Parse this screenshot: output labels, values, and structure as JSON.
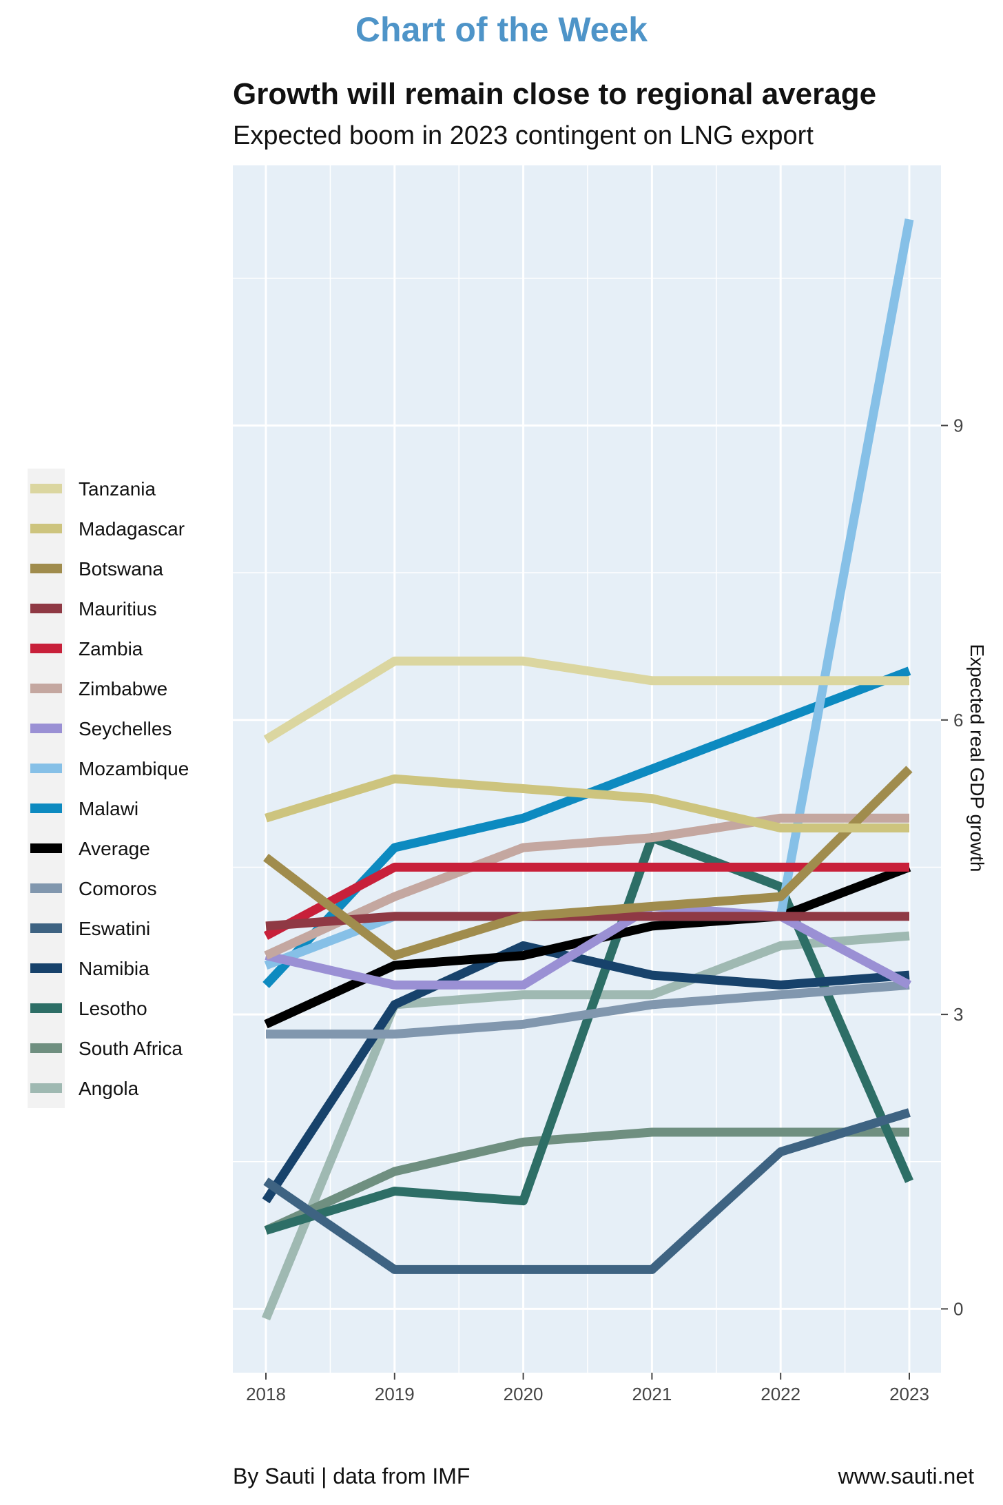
{
  "header": {
    "kicker": "Chart of the Week",
    "title": "Growth will remain close to regional average",
    "subtitle": "Expected boom in 2023 contingent on LNG export"
  },
  "footer": {
    "source": "By Sauti | data from IMF",
    "website": "www.sauti.net"
  },
  "chart_data": {
    "type": "line",
    "title": "Growth will remain close to regional average",
    "subtitle": "Expected boom in 2023 contingent on LNG export",
    "xlabel": "",
    "ylabel": "Expected real GDP growth",
    "y_axis_position": "right",
    "x": [
      2018,
      2019,
      2020,
      2021,
      2022,
      2023
    ],
    "x_ticks": [
      "2018",
      "2019",
      "2020",
      "2021",
      "2022",
      "2023"
    ],
    "y_ticks": [
      0,
      3,
      6,
      9
    ],
    "ylim": [
      -0.65,
      11.65
    ],
    "grid": true,
    "panel_background": "#e6eff7",
    "legend_position": "left",
    "series": [
      {
        "name": "Tanzania",
        "color": "#dbd6a0",
        "values": [
          5.8,
          6.6,
          6.6,
          6.4,
          6.4,
          6.4
        ]
      },
      {
        "name": "Madagascar",
        "color": "#cdc47e",
        "values": [
          5.0,
          5.4,
          5.3,
          5.2,
          4.9,
          4.9
        ]
      },
      {
        "name": "Botswana",
        "color": "#a08c4d",
        "values": [
          4.6,
          3.6,
          4.0,
          4.1,
          4.2,
          5.5
        ]
      },
      {
        "name": "Mauritius",
        "color": "#8f3944",
        "values": [
          3.9,
          4.0,
          4.0,
          4.0,
          4.0,
          4.0
        ]
      },
      {
        "name": "Zambia",
        "color": "#c8203a",
        "values": [
          3.8,
          4.5,
          4.5,
          4.5,
          4.5,
          4.5
        ]
      },
      {
        "name": "Zimbabwe",
        "color": "#c4a7a0",
        "values": [
          3.6,
          4.2,
          4.7,
          4.8,
          5.0,
          5.0
        ]
      },
      {
        "name": "Seychelles",
        "color": "#9a90d4",
        "values": [
          3.6,
          3.3,
          3.3,
          4.1,
          4.0,
          3.3
        ]
      },
      {
        "name": "Mozambique",
        "color": "#86c0e7",
        "values": [
          3.5,
          4.0,
          4.0,
          4.0,
          4.0,
          11.1
        ]
      },
      {
        "name": "Malawi",
        "color": "#0d8ac0",
        "values": [
          3.3,
          4.7,
          5.0,
          5.5,
          6.0,
          6.5
        ]
      },
      {
        "name": "Average",
        "color": "#000000",
        "values": [
          2.9,
          3.5,
          3.6,
          3.9,
          4.0,
          4.5
        ]
      },
      {
        "name": "Comoros",
        "color": "#8197ae",
        "values": [
          2.8,
          2.8,
          2.9,
          3.1,
          3.2,
          3.3
        ]
      },
      {
        "name": "Eswatini",
        "color": "#3e6382",
        "values": [
          1.3,
          0.4,
          0.4,
          0.4,
          1.6,
          2.0
        ]
      },
      {
        "name": "Namibia",
        "color": "#17426b",
        "values": [
          1.1,
          3.1,
          3.7,
          3.4,
          3.3,
          3.4
        ]
      },
      {
        "name": "Lesotho",
        "color": "#2d6e66",
        "values": [
          0.8,
          1.2,
          1.1,
          4.8,
          4.3,
          1.3
        ]
      },
      {
        "name": "South Africa",
        "color": "#6f8f80",
        "values": [
          0.8,
          1.4,
          1.7,
          1.8,
          1.8,
          1.8
        ]
      },
      {
        "name": "Angola",
        "color": "#9fb9b2",
        "values": [
          -0.1,
          3.1,
          3.2,
          3.2,
          3.7,
          3.8
        ]
      }
    ]
  }
}
